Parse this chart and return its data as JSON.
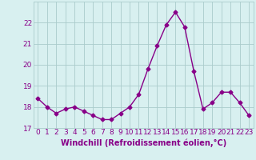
{
  "hours": [
    0,
    1,
    2,
    3,
    4,
    5,
    6,
    7,
    8,
    9,
    10,
    11,
    12,
    13,
    14,
    15,
    16,
    17,
    18,
    19,
    20,
    21,
    22,
    23
  ],
  "values": [
    18.4,
    18.0,
    17.7,
    17.9,
    18.0,
    17.8,
    17.6,
    17.4,
    17.4,
    17.7,
    18.0,
    18.6,
    19.8,
    20.9,
    21.9,
    22.5,
    21.8,
    19.7,
    17.9,
    18.2,
    18.7,
    18.7,
    18.2,
    17.6
  ],
  "line_color": "#880088",
  "marker": "D",
  "marker_size": 2.5,
  "linewidth": 1.0,
  "bg_color": "#d8f0f0",
  "grid_color": "#aacccc",
  "xlabel": "Windchill (Refroidissement éolien,°C)",
  "xlabel_fontsize": 7,
  "tick_fontsize": 6.5,
  "ylim": [
    17.0,
    23.0
  ],
  "yticks": [
    17,
    18,
    19,
    20,
    21,
    22
  ],
  "xticks": [
    0,
    1,
    2,
    3,
    4,
    5,
    6,
    7,
    8,
    9,
    10,
    11,
    12,
    13,
    14,
    15,
    16,
    17,
    18,
    19,
    20,
    21,
    22,
    23
  ]
}
